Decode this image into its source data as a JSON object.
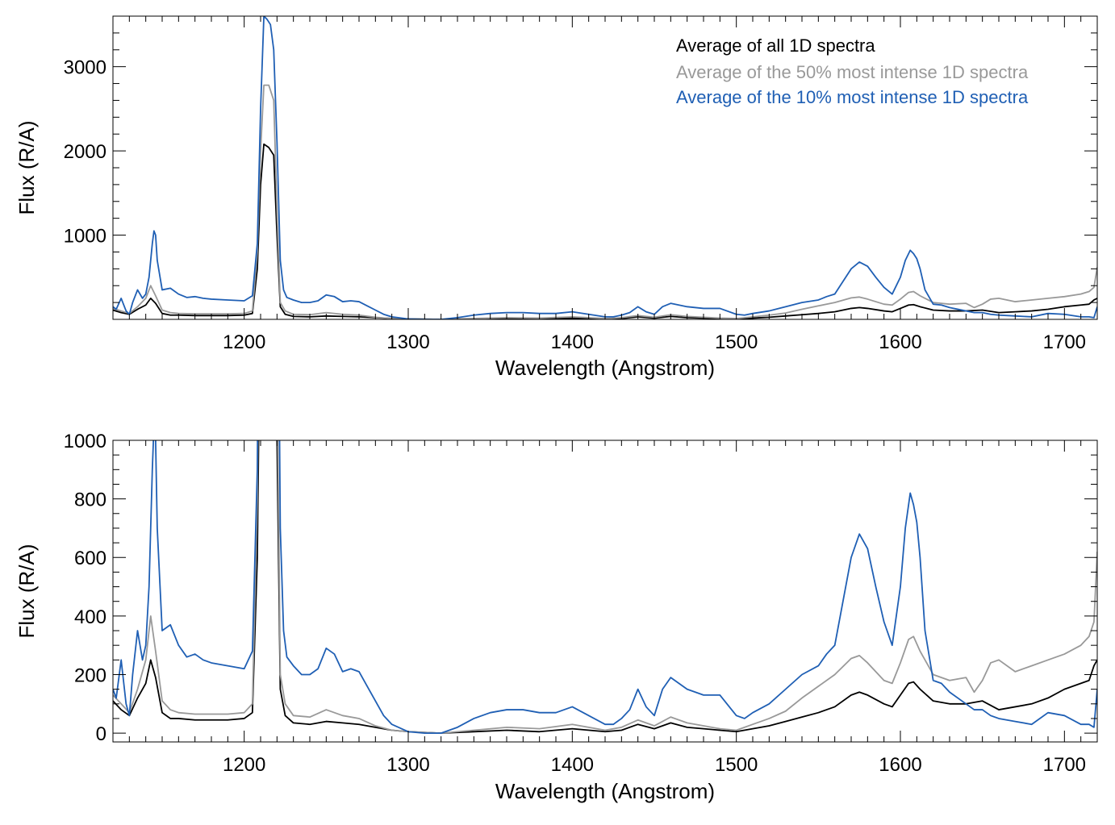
{
  "figure": {
    "background": "#ffffff"
  },
  "chart_data": [
    {
      "type": "line",
      "title": "",
      "xlabel": "Wavelength (Angstrom)",
      "ylabel": "Flux (R/A)",
      "xlim": [
        1120,
        1720
      ],
      "ylim": [
        0,
        3600
      ],
      "xticks": [
        1200,
        1300,
        1400,
        1500,
        1600,
        1700
      ],
      "yticks": [
        1000,
        2000,
        3000
      ],
      "grid": false,
      "legend_position": "top-right",
      "series": [
        {
          "name": "Average of all 1D spectra",
          "color": "#000000",
          "x": [
            1120,
            1125,
            1130,
            1135,
            1140,
            1143,
            1146,
            1150,
            1155,
            1160,
            1170,
            1180,
            1190,
            1200,
            1205,
            1208,
            1210,
            1212,
            1215,
            1218,
            1220,
            1222,
            1225,
            1230,
            1240,
            1250,
            1260,
            1270,
            1280,
            1290,
            1300,
            1320,
            1340,
            1360,
            1380,
            1400,
            1420,
            1430,
            1440,
            1450,
            1460,
            1470,
            1480,
            1490,
            1500,
            1510,
            1520,
            1530,
            1540,
            1550,
            1560,
            1570,
            1575,
            1580,
            1590,
            1595,
            1600,
            1605,
            1608,
            1612,
            1620,
            1630,
            1640,
            1650,
            1660,
            1670,
            1680,
            1690,
            1700,
            1710,
            1715,
            1718,
            1720
          ],
          "y": [
            110,
            80,
            60,
            120,
            170,
            250,
            190,
            70,
            50,
            50,
            45,
            45,
            45,
            50,
            70,
            600,
            1600,
            2080,
            2040,
            1950,
            1000,
            150,
            60,
            35,
            30,
            40,
            35,
            30,
            20,
            10,
            5,
            0,
            5,
            10,
            5,
            15,
            5,
            10,
            30,
            15,
            35,
            20,
            15,
            10,
            5,
            15,
            25,
            40,
            55,
            70,
            90,
            130,
            140,
            130,
            100,
            90,
            130,
            170,
            175,
            150,
            110,
            100,
            100,
            110,
            80,
            90,
            100,
            120,
            150,
            170,
            180,
            230,
            250
          ]
        },
        {
          "name": "Average of the 50% most intense 1D spectra",
          "color": "#999999",
          "x": [
            1120,
            1125,
            1130,
            1135,
            1140,
            1143,
            1146,
            1150,
            1155,
            1160,
            1170,
            1180,
            1190,
            1200,
            1205,
            1208,
            1210,
            1212,
            1215,
            1218,
            1220,
            1222,
            1225,
            1230,
            1240,
            1250,
            1260,
            1270,
            1280,
            1290,
            1300,
            1320,
            1340,
            1360,
            1380,
            1400,
            1420,
            1430,
            1440,
            1450,
            1460,
            1470,
            1480,
            1490,
            1500,
            1510,
            1520,
            1530,
            1540,
            1550,
            1560,
            1570,
            1575,
            1580,
            1590,
            1595,
            1600,
            1605,
            1608,
            1612,
            1620,
            1630,
            1640,
            1645,
            1650,
            1655,
            1660,
            1670,
            1680,
            1690,
            1700,
            1710,
            1715,
            1718,
            1720
          ],
          "y": [
            130,
            100,
            70,
            150,
            250,
            400,
            280,
            110,
            80,
            70,
            65,
            65,
            65,
            70,
            100,
            800,
            2000,
            2780,
            2780,
            2600,
            1300,
            200,
            100,
            60,
            55,
            80,
            60,
            50,
            25,
            10,
            5,
            0,
            10,
            20,
            15,
            30,
            10,
            20,
            45,
            25,
            55,
            35,
            25,
            15,
            10,
            30,
            50,
            75,
            120,
            160,
            200,
            255,
            265,
            240,
            180,
            170,
            240,
            320,
            330,
            280,
            200,
            180,
            190,
            140,
            180,
            240,
            250,
            210,
            230,
            250,
            270,
            300,
            330,
            380,
            620
          ]
        },
        {
          "name": "Average of the 10% most intense 1D spectra",
          "color": "#1f5fb4",
          "x": [
            1120,
            1122,
            1125,
            1128,
            1130,
            1132,
            1135,
            1138,
            1140,
            1142,
            1143,
            1144,
            1145,
            1146,
            1147,
            1150,
            1155,
            1160,
            1165,
            1170,
            1175,
            1180,
            1190,
            1200,
            1205,
            1208,
            1210,
            1212,
            1214,
            1216,
            1218,
            1220,
            1222,
            1224,
            1226,
            1230,
            1235,
            1240,
            1245,
            1250,
            1255,
            1260,
            1265,
            1270,
            1275,
            1280,
            1285,
            1290,
            1300,
            1310,
            1320,
            1330,
            1340,
            1350,
            1360,
            1370,
            1380,
            1390,
            1400,
            1410,
            1420,
            1425,
            1430,
            1435,
            1440,
            1445,
            1450,
            1455,
            1460,
            1465,
            1470,
            1480,
            1490,
            1500,
            1505,
            1510,
            1520,
            1530,
            1540,
            1550,
            1555,
            1560,
            1565,
            1570,
            1575,
            1580,
            1585,
            1590,
            1595,
            1600,
            1603,
            1606,
            1608,
            1610,
            1612,
            1615,
            1620,
            1625,
            1630,
            1640,
            1645,
            1650,
            1655,
            1660,
            1670,
            1680,
            1690,
            1700,
            1710,
            1715,
            1718,
            1720
          ],
          "y": [
            150,
            120,
            250,
            100,
            60,
            200,
            350,
            250,
            300,
            500,
            700,
            900,
            1050,
            1000,
            700,
            350,
            370,
            300,
            260,
            270,
            250,
            240,
            230,
            220,
            280,
            900,
            2500,
            3600,
            3560,
            3500,
            3200,
            2100,
            700,
            350,
            260,
            230,
            200,
            200,
            220,
            290,
            270,
            210,
            220,
            210,
            160,
            110,
            60,
            30,
            5,
            0,
            0,
            20,
            50,
            70,
            80,
            80,
            70,
            70,
            90,
            60,
            30,
            30,
            50,
            80,
            150,
            90,
            60,
            150,
            190,
            170,
            150,
            130,
            130,
            60,
            50,
            70,
            100,
            150,
            200,
            230,
            270,
            300,
            450,
            600,
            680,
            630,
            500,
            380,
            300,
            500,
            700,
            820,
            780,
            720,
            600,
            350,
            180,
            170,
            140,
            100,
            80,
            80,
            60,
            50,
            40,
            30,
            70,
            60,
            30,
            30,
            20,
            150
          ]
        }
      ]
    },
    {
      "type": "line",
      "title": "",
      "xlabel": "Wavelength (Angstrom)",
      "ylabel": "Flux (R/A)",
      "xlim": [
        1120,
        1720
      ],
      "ylim": [
        -30,
        1000
      ],
      "xticks": [
        1200,
        1300,
        1400,
        1500,
        1600,
        1700
      ],
      "yticks": [
        0,
        200,
        400,
        600,
        800,
        1000
      ],
      "grid": false,
      "legend_position": "none",
      "series_ref": "same as top panel (zoomed y-range)"
    }
  ],
  "axis_text": {
    "top_xticks": [
      "1200",
      "1300",
      "1400",
      "1500",
      "1600",
      "1700"
    ],
    "top_yticks": [
      "1000",
      "2000",
      "3000"
    ],
    "bottom_xticks": [
      "1200",
      "1300",
      "1400",
      "1500",
      "1600",
      "1700"
    ],
    "bottom_yticks": [
      "0",
      "200",
      "400",
      "600",
      "800",
      "1000"
    ],
    "xlabel": "Wavelength (Angstrom)",
    "ylabel": "Flux (R/A)"
  },
  "legend": [
    {
      "label": "Average of all 1D spectra",
      "color": "#000000"
    },
    {
      "label": "Average of the 50% most intense 1D spectra",
      "color": "#999999"
    },
    {
      "label": "Average of the 10% most intense 1D spectra",
      "color": "#1f5fb4"
    }
  ]
}
